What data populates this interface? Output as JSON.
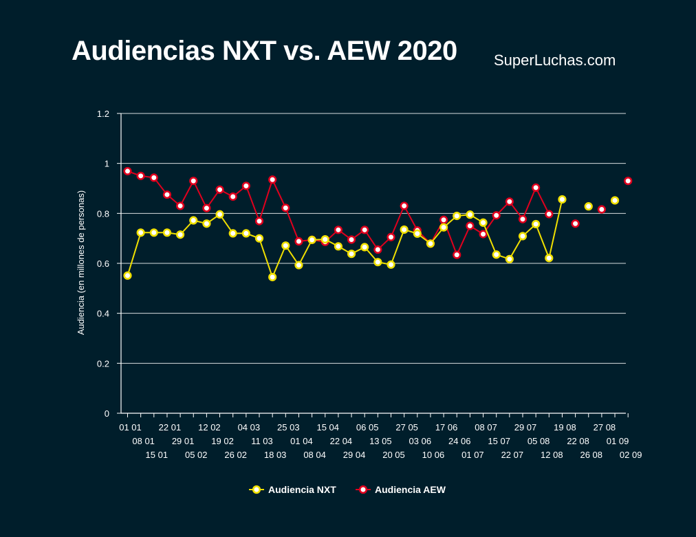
{
  "title": "Audiencias NXT vs. AEW 2020",
  "brand": "SuperLuchas.com",
  "colors": {
    "background": "#001e2b",
    "nxt": "#f0e000",
    "aew": "#e0001e",
    "grid": "#ffffff"
  },
  "chart_data": {
    "type": "line",
    "ylabel": "Audiencia (en millones de personas)",
    "xlabel": "",
    "ylim": [
      0,
      1.2
    ],
    "yticks": [
      0,
      0.2,
      0.4,
      0.6,
      0.8,
      1,
      1.2
    ],
    "grid": true,
    "legend_position": "bottom",
    "categories": [
      "01 01",
      "08 01",
      "15 01",
      "22 01",
      "29 01",
      "05 02",
      "12 02",
      "19 02",
      "26 02",
      "04 03",
      "11 03",
      "18 03",
      "25 03",
      "01 04",
      "08 04",
      "15 04",
      "22 04",
      "29 04",
      "06 05",
      "13 05",
      "20 05",
      "27 05",
      "03 06",
      "10 06",
      "17 06",
      "24 06",
      "01 07",
      "08 07",
      "15 07",
      "22 07",
      "29 07",
      "05 08",
      "12 08",
      "19 08",
      "22 08",
      "26 08",
      "27 08",
      "01 09",
      "02 09"
    ],
    "series": [
      {
        "name": "Audiencia NXT",
        "values": [
          0.551,
          0.723,
          0.723,
          0.723,
          0.715,
          0.772,
          0.759,
          0.796,
          0.72,
          0.72,
          0.7,
          0.545,
          0.671,
          0.593,
          0.694,
          0.696,
          0.668,
          0.638,
          0.665,
          0.605,
          0.595,
          0.735,
          0.719,
          0.679,
          0.744,
          0.79,
          0.795,
          0.763,
          0.635,
          0.617,
          0.709,
          0.757,
          0.621,
          0.856,
          null,
          0.828,
          null,
          0.852,
          null
        ]
      },
      {
        "name": "Audiencia AEW",
        "values": [
          0.969,
          0.95,
          0.943,
          0.875,
          0.83,
          0.93,
          0.821,
          0.895,
          0.867,
          0.91,
          0.769,
          0.935,
          0.822,
          0.688,
          0.694,
          0.686,
          0.734,
          0.695,
          0.734,
          0.655,
          0.705,
          0.83,
          0.732,
          0.679,
          0.774,
          0.634,
          0.75,
          0.717,
          0.792,
          0.847,
          0.777,
          0.903,
          0.797,
          null,
          0.759,
          null,
          0.816,
          null,
          0.93
        ]
      }
    ]
  }
}
